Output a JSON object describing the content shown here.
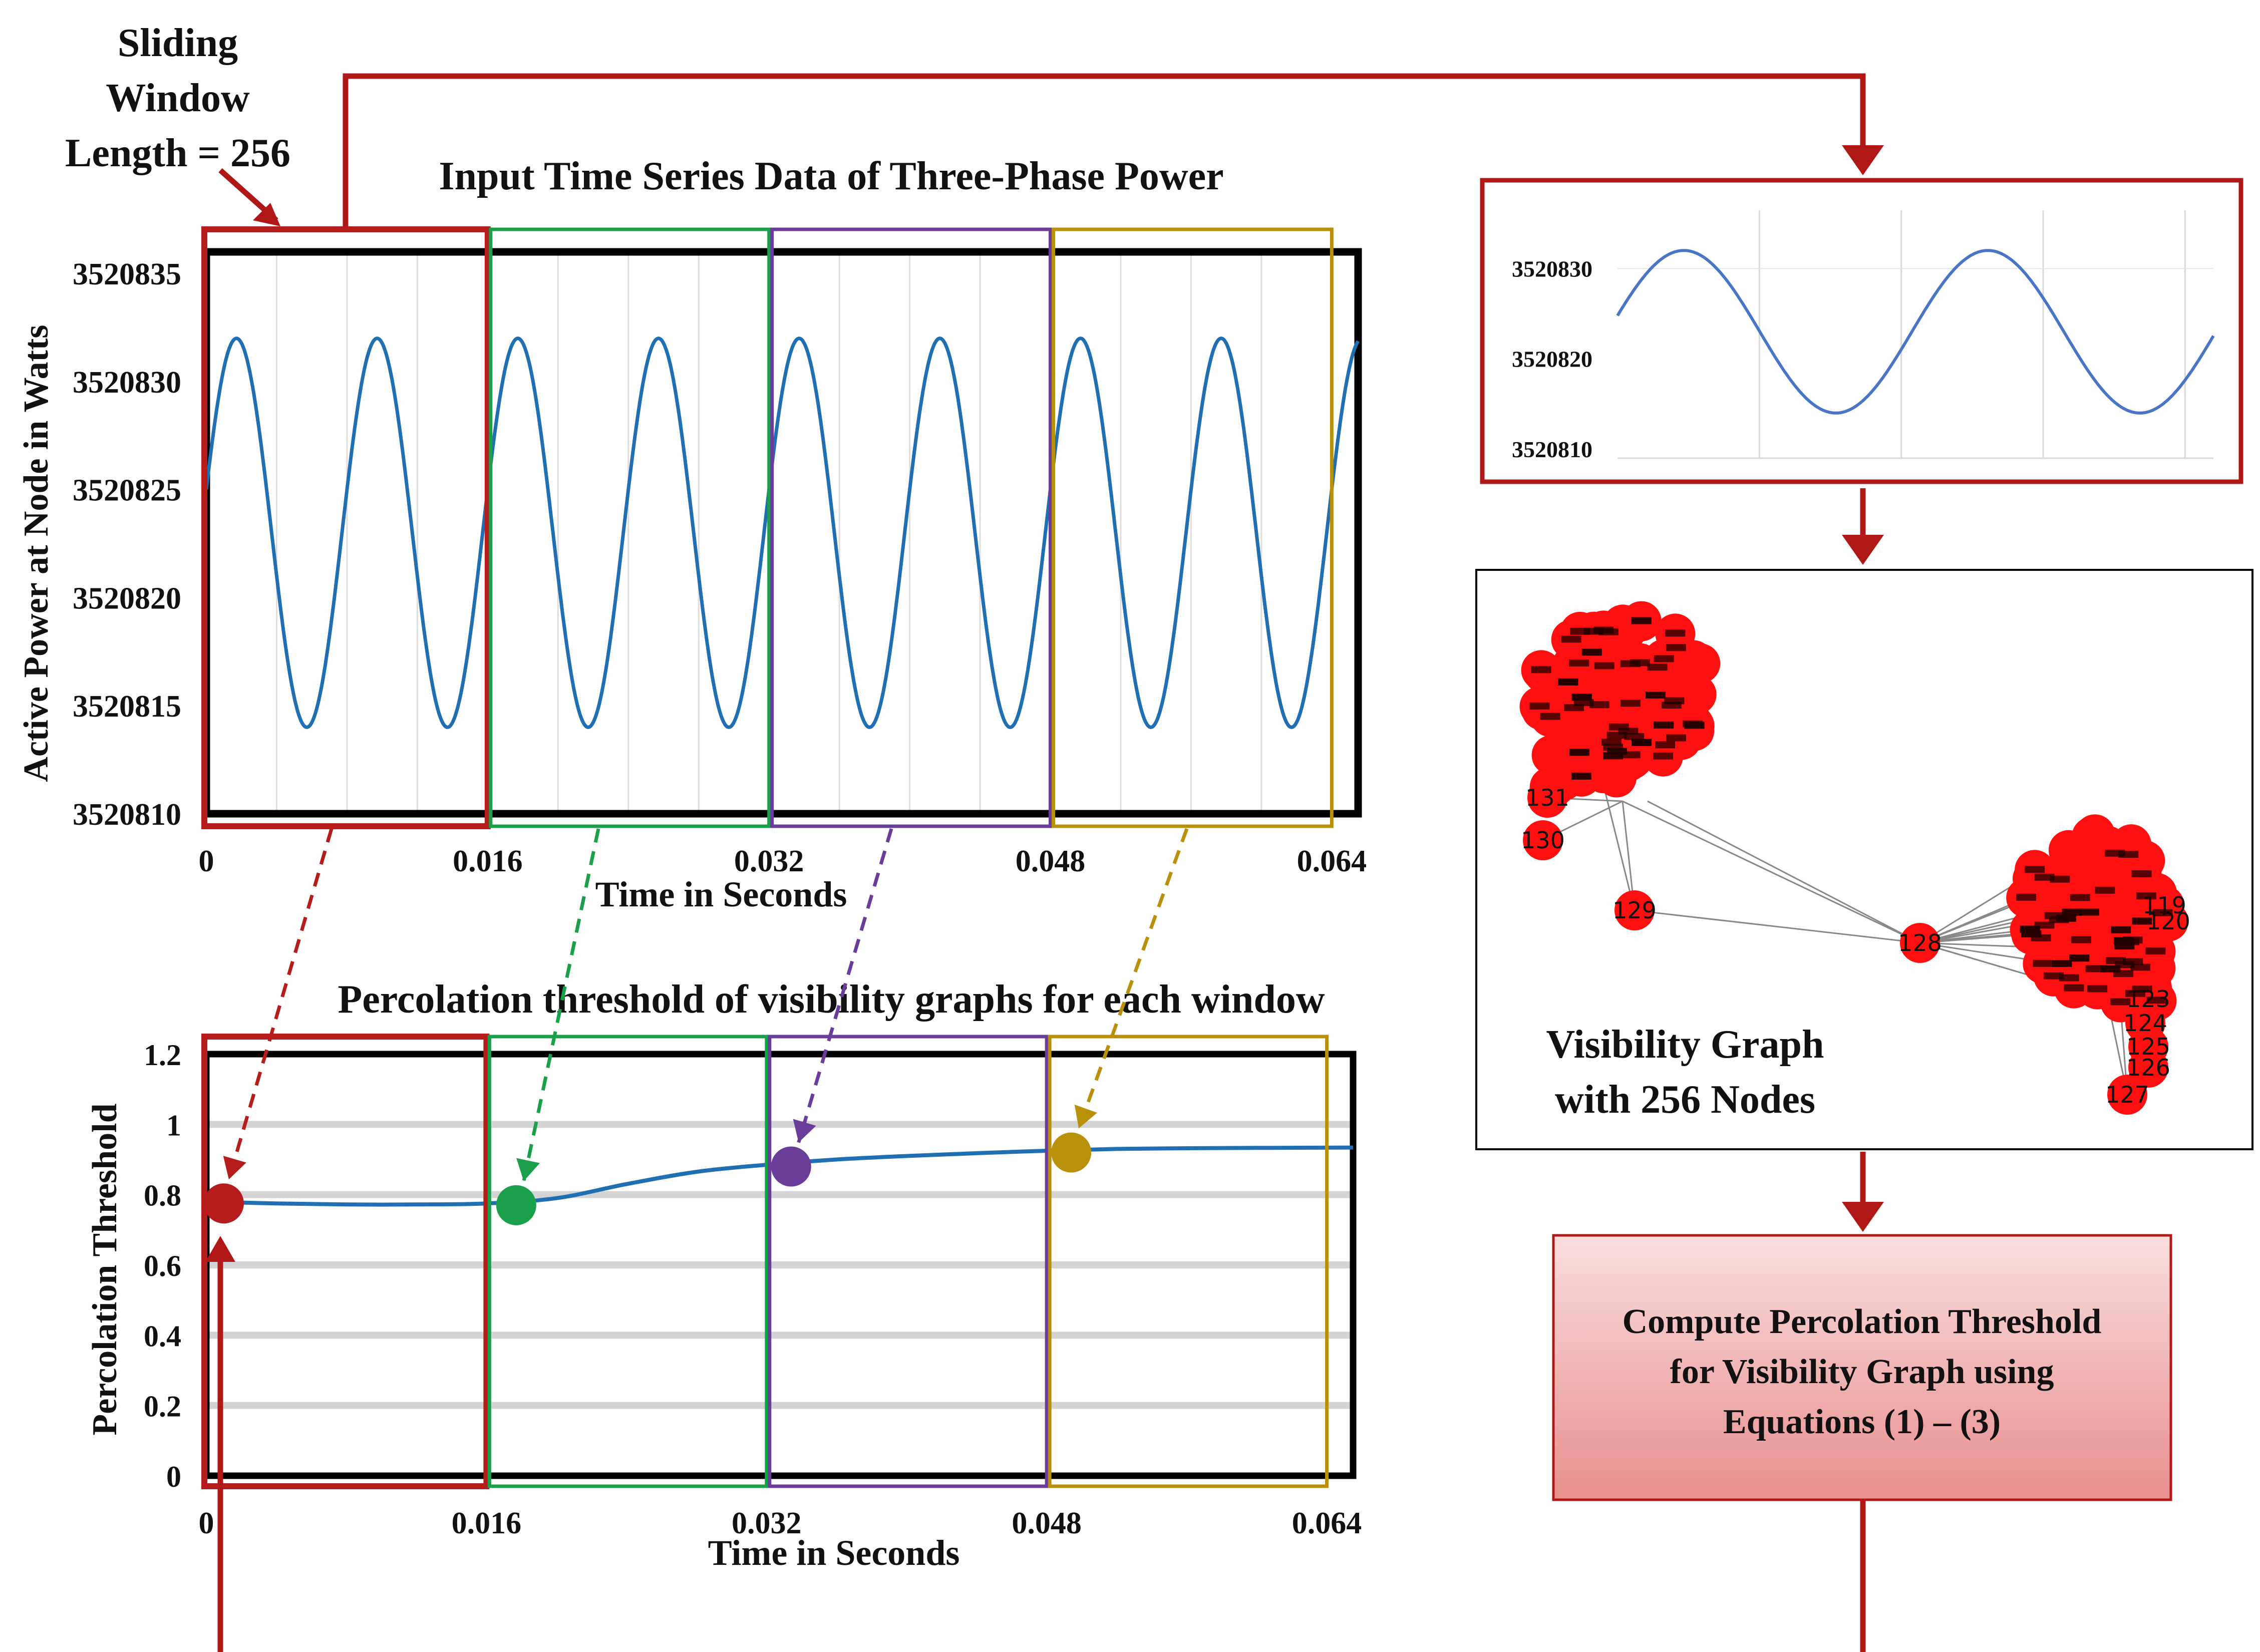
{
  "colors": {
    "window1": "#b71c1c",
    "window2": "#1aa04a",
    "window3": "#6a3d9a",
    "window4": "#b8900a",
    "flow_arrow": "#b01818",
    "series_line": "#1f6fb2",
    "inset_line": "#4a74c4",
    "node_fill": "#ff1010",
    "edge": "#888888",
    "compute_box_top": "#f9dede",
    "compute_box_bottom": "#e88e8e"
  },
  "sliding_window_label": [
    "Sliding",
    "Window",
    "Length = 256"
  ],
  "visibility_graph": {
    "caption": [
      "Visibility Graph",
      "with 256 Nodes"
    ],
    "visible_node_labels": [
      "129",
      "130",
      "131",
      "128",
      "127",
      "123",
      "124",
      "125",
      "126",
      "120",
      "119"
    ]
  },
  "compute_box": {
    "lines": [
      "Compute Percolation Threshold",
      "for Visibility Graph using",
      "Equations (1) – (3)"
    ]
  },
  "chart_data": [
    {
      "id": "input-series",
      "type": "line",
      "title": "Input Time Series Data of Three-Phase Power",
      "xlabel": "Time in Seconds",
      "ylabel": "Active Power at Node in Watts",
      "xlim": [
        0,
        0.0655
      ],
      "ylim": [
        3520810,
        3520836
      ],
      "x_ticks": [
        "0",
        "0.016",
        "0.032",
        "0.048",
        "0.064"
      ],
      "y_ticks": [
        "3520810",
        "3520815",
        "3520820",
        "3520825",
        "3520830",
        "3520835"
      ],
      "series": [
        {
          "mean": 3520823,
          "amplitude": 9,
          "period": 0.008,
          "phase_start_value": 3520825,
          "x_range": [
            0,
            0.0655
          ]
        }
      ],
      "windows": [
        [
          0,
          0.016
        ],
        [
          0.016,
          0.032
        ],
        [
          0.032,
          0.048
        ],
        [
          0.048,
          0.064
        ]
      ],
      "grid": "vertical"
    },
    {
      "id": "window-inset",
      "type": "line",
      "title": "",
      "y_ticks": [
        "3520830",
        "3520820",
        "3520810"
      ],
      "ylim": [
        3520809,
        3520837
      ],
      "series": [
        {
          "mean": 3520823,
          "amplitude": 9,
          "cycles": 1.96
        }
      ],
      "grid": "vertical"
    },
    {
      "id": "percolation-threshold",
      "type": "line",
      "title": "Percolation threshold of visibility graphs for each window",
      "xlabel": "Time in Seconds",
      "ylabel": "Percolation Threshold",
      "xlim": [
        0,
        0.0655
      ],
      "ylim": [
        0,
        1.2
      ],
      "x_ticks": [
        "0",
        "0.016",
        "0.032",
        "0.048",
        "0.064"
      ],
      "y_ticks": [
        "0",
        "0.2",
        "0.4",
        "0.6",
        "0.8",
        "1",
        "1.2"
      ],
      "curve": {
        "x": [
          0,
          0.004,
          0.008,
          0.012,
          0.016,
          0.02,
          0.024,
          0.028,
          0.032,
          0.036,
          0.04,
          0.044,
          0.048,
          0.052,
          0.056,
          0.06,
          0.0655
        ],
        "y": [
          0.78,
          0.775,
          0.772,
          0.772,
          0.775,
          0.79,
          0.83,
          0.865,
          0.885,
          0.9,
          0.91,
          0.918,
          0.925,
          0.93,
          0.932,
          0.933,
          0.934
        ]
      },
      "markers": [
        {
          "x": 0.001,
          "y": 0.775
        },
        {
          "x": 0.0177,
          "y": 0.77
        },
        {
          "x": 0.0334,
          "y": 0.88
        },
        {
          "x": 0.0494,
          "y": 0.92
        }
      ],
      "grid": "horizontal"
    }
  ]
}
